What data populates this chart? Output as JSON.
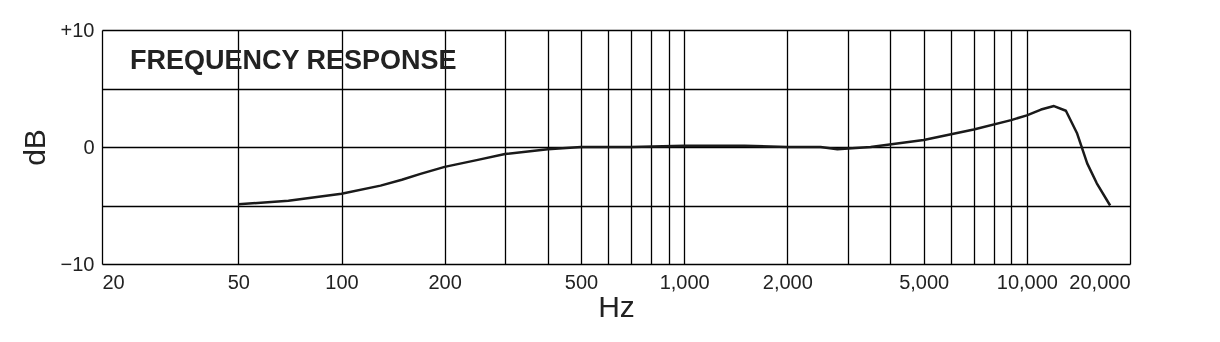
{
  "chart_data": {
    "type": "line",
    "title": "FREQUENCY RESPONSE",
    "xlabel": "Hz",
    "ylabel": "dB",
    "x": [
      50,
      70,
      100,
      130,
      150,
      170,
      200,
      250,
      300,
      400,
      500,
      700,
      1000,
      1500,
      2000,
      2500,
      2800,
      3500,
      5000,
      7000,
      9000,
      10000,
      11000,
      12000,
      13000,
      14000,
      15000,
      16000,
      17500
    ],
    "series": [
      {
        "color": "#1a1a1a",
        "values": [
          -4.9,
          -4.6,
          -4.0,
          -3.3,
          -2.8,
          -2.3,
          -1.7,
          -1.1,
          -0.6,
          -0.2,
          0,
          0,
          0.1,
          0.1,
          0,
          0,
          -0.2,
          0,
          0.6,
          1.5,
          2.3,
          2.7,
          3.2,
          3.5,
          3.1,
          1.2,
          -1.4,
          -3.1,
          -5.0
        ]
      }
    ],
    "log": "x",
    "xlim": [
      20,
      20000
    ],
    "ylim": [
      -10,
      10
    ],
    "xticks": [
      20,
      50,
      100,
      200,
      {
        "value": 300,
        "label": null
      },
      {
        "value": 400,
        "label": null
      },
      500,
      {
        "value": 600,
        "label": null
      },
      {
        "value": 700,
        "label": null
      },
      {
        "value": 800,
        "label": null
      },
      {
        "value": 900,
        "label": null
      },
      {
        "value": 1000,
        "label": "1,000"
      },
      {
        "value": 2000,
        "label": "2,000"
      },
      {
        "value": 3000,
        "label": null
      },
      {
        "value": 4000,
        "label": null
      },
      {
        "value": 5000,
        "label": "5,000"
      },
      {
        "value": 6000,
        "label": null
      },
      {
        "value": 7000,
        "label": null
      },
      {
        "value": 8000,
        "label": null
      },
      {
        "value": 9000,
        "label": null
      },
      {
        "value": 10000,
        "label": "10,000"
      },
      {
        "value": 20000,
        "label": "20,000"
      }
    ],
    "yticks": [
      {
        "value": -10,
        "label": "−10"
      },
      {
        "value": -5,
        "label": null
      },
      0,
      {
        "value": 5,
        "label": null
      },
      {
        "value": 10,
        "label": "+10"
      }
    ],
    "grid": true,
    "line_style": "solid",
    "marker": "none"
  }
}
